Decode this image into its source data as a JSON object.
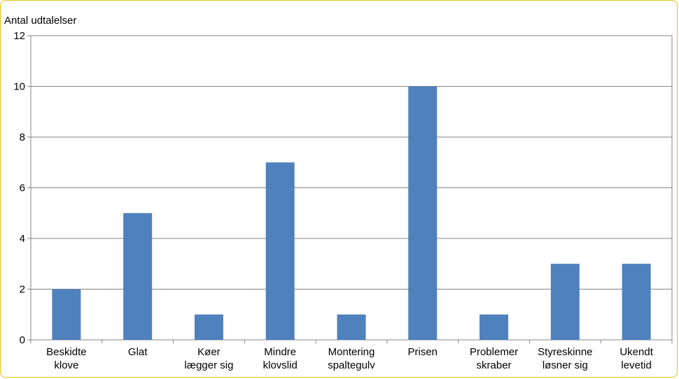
{
  "chart_data": {
    "type": "bar",
    "ylabel": "Antal udtalelser",
    "xlabel": "",
    "title": "",
    "ylim": [
      0,
      12
    ],
    "yticks": [
      0,
      2,
      4,
      6,
      8,
      10,
      12
    ],
    "grid": true,
    "bar_color": "#4f81bd",
    "categories": [
      [
        "Beskidte",
        "klove"
      ],
      [
        "Glat"
      ],
      [
        "Køer",
        "lægger sig"
      ],
      [
        "Mindre",
        "klovslid"
      ],
      [
        "Montering",
        "spaltegulv"
      ],
      [
        "Prisen"
      ],
      [
        "Problemer",
        "skraber"
      ],
      [
        "Styreskinne",
        "løsner sig"
      ],
      [
        "Ukendt",
        "levetid"
      ]
    ],
    "values": [
      2,
      5,
      1,
      7,
      1,
      10,
      1,
      3,
      3
    ]
  }
}
